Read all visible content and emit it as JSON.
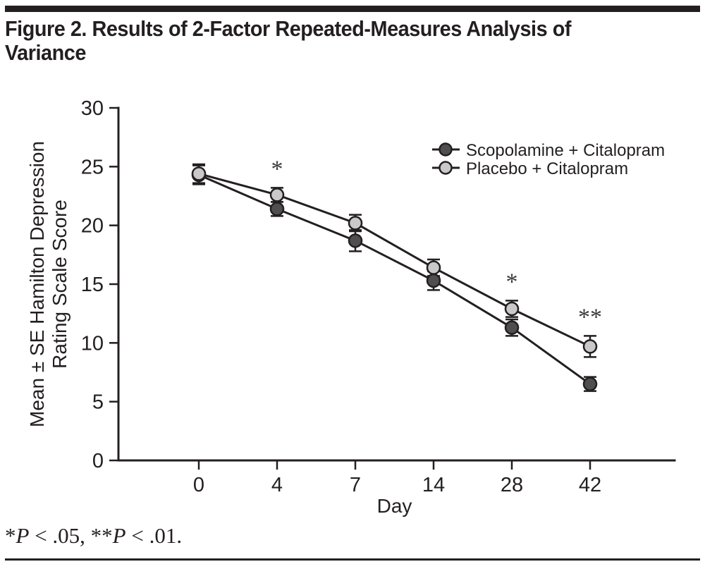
{
  "header": {
    "title_line1": "Figure 2. Results of 2-Factor Repeated-Measures Analysis of",
    "title_line2": "Variance"
  },
  "chart_data": {
    "type": "line",
    "title": "Figure 2. Results of 2-Factor Repeated-Measures Analysis of Variance",
    "x_categories": [
      "0",
      "4",
      "7",
      "14",
      "28",
      "42"
    ],
    "xlabel": "Day",
    "ylabel_line1": "Mean ± SE Hamilton Depression",
    "ylabel_line2": "Rating Scale Score",
    "ylim": [
      0,
      30
    ],
    "y_ticks": [
      0,
      5,
      10,
      15,
      20,
      25,
      30
    ],
    "grid": false,
    "legend_position": "top-right",
    "line_color": "#231f20",
    "series": [
      {
        "name": "Scopolamine + Citalopram",
        "values": [
          24.3,
          21.4,
          18.7,
          15.3,
          11.3,
          6.5
        ],
        "se": [
          0.8,
          0.6,
          0.9,
          0.8,
          0.7,
          0.6
        ],
        "marker_fill": "#4f4f4f"
      },
      {
        "name": "Placebo + Citalopram",
        "values": [
          24.4,
          22.6,
          20.2,
          16.4,
          12.9,
          9.7
        ],
        "se": [
          0.8,
          0.6,
          0.7,
          0.7,
          0.7,
          0.9
        ],
        "marker_fill": "#c9c9c9"
      }
    ],
    "annotations": [
      {
        "x_index": 1,
        "text": "*",
        "y": 25.0
      },
      {
        "x_index": 4,
        "text": "*",
        "y": 15.4
      },
      {
        "x_index": 5,
        "text": "**",
        "y": 12.4
      }
    ]
  },
  "footnote": {
    "star1": "*",
    "p1": "P",
    "seg1": " < .05, ",
    "star2": "**",
    "p2": "P",
    "seg2": " < .01."
  },
  "colors": {
    "ink": "#231f20"
  }
}
